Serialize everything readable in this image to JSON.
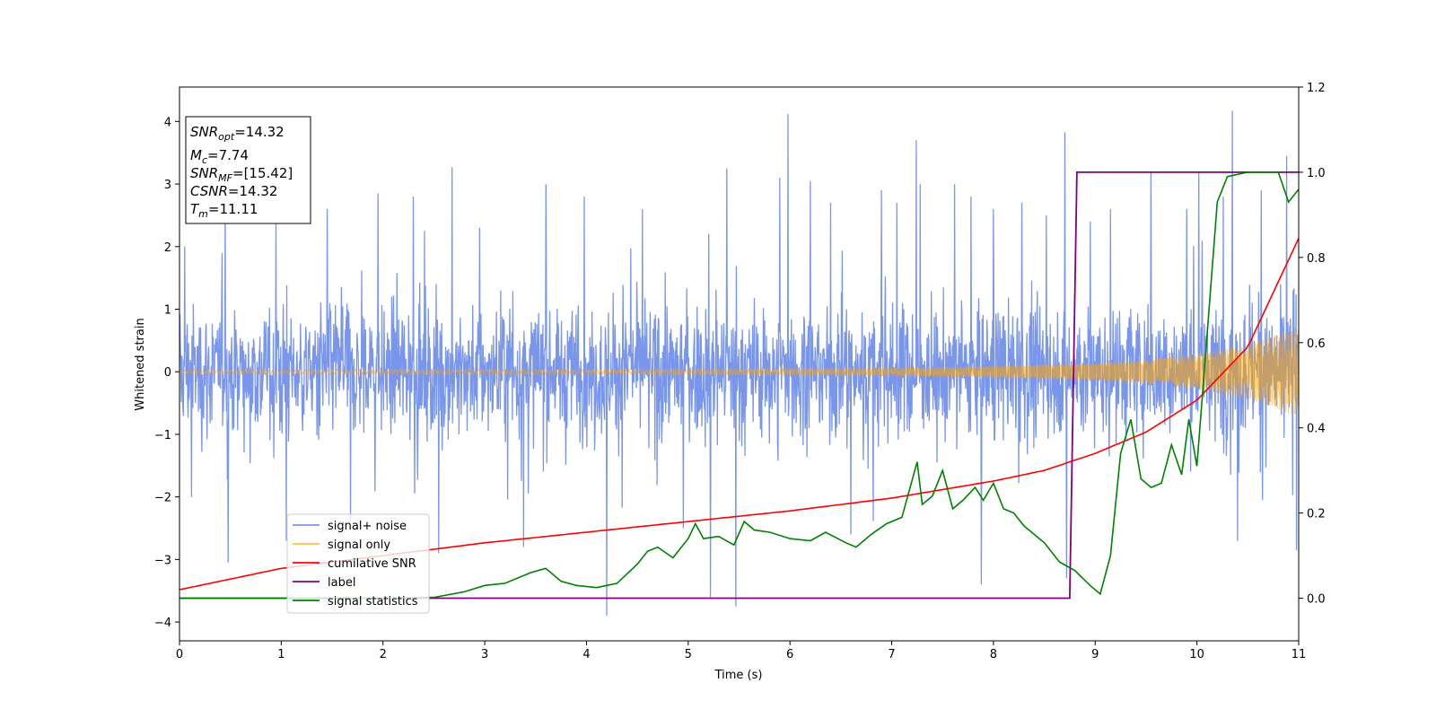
{
  "chart_data": {
    "type": "line",
    "xlabel": "Time (s)",
    "ylabel": "Whitened strain",
    "xlim": [
      0,
      11
    ],
    "ylim": [
      -4.3,
      4.55
    ],
    "y2lim": [
      -0.1,
      1.2
    ],
    "xticks": [
      0,
      1,
      2,
      3,
      4,
      5,
      6,
      7,
      8,
      9,
      10,
      11
    ],
    "yticks": [
      -4,
      -3,
      -2,
      -1,
      0,
      1,
      2,
      3,
      4
    ],
    "y2ticks": [
      "0.0",
      "0.2",
      "0.4",
      "0.6",
      "0.8",
      "1.0",
      "1.2"
    ],
    "y2tick_values": [
      0.0,
      0.2,
      0.4,
      0.6,
      0.8,
      1.0,
      1.2
    ],
    "grid": false,
    "legend_position": "lower-left",
    "info_box": {
      "snr_opt": "14.32",
      "mc": "7.74",
      "snr_mf": "[15.42]",
      "csnr": "14.32",
      "tm": "11.11"
    },
    "series": [
      {
        "name": "signal+ noise",
        "axis": "left",
        "color": "#4169e1",
        "description_values": "noise band roughly +/-1.2 with spikes up to about +/-4.2",
        "noise_envelope": 1.2,
        "spikes": [
          [
            0.05,
            2.0
          ],
          [
            0.12,
            -2.0
          ],
          [
            0.45,
            2.8
          ],
          [
            0.48,
            -3.05
          ],
          [
            0.95,
            2.4
          ],
          [
            1.05,
            -2.7
          ],
          [
            1.45,
            2.6
          ],
          [
            1.68,
            -2.4
          ],
          [
            1.95,
            2.85
          ],
          [
            2.3,
            2.8
          ],
          [
            2.55,
            -2.9
          ],
          [
            2.68,
            3.27
          ],
          [
            2.95,
            2.3
          ],
          [
            3.38,
            -2.8
          ],
          [
            3.6,
            3.0
          ],
          [
            3.98,
            2.8
          ],
          [
            4.2,
            -3.9
          ],
          [
            4.55,
            2.6
          ],
          [
            4.95,
            -2.5
          ],
          [
            5.2,
            2.2
          ],
          [
            5.22,
            -3.6
          ],
          [
            5.38,
            3.25
          ],
          [
            5.47,
            -3.75
          ],
          [
            5.9,
            3.1
          ],
          [
            5.98,
            4.12
          ],
          [
            6.2,
            3.05
          ],
          [
            6.4,
            2.7
          ],
          [
            6.6,
            -2.6
          ],
          [
            6.9,
            2.9
          ],
          [
            7.05,
            2.7
          ],
          [
            7.24,
            3.7
          ],
          [
            7.28,
            3.0
          ],
          [
            7.62,
            3.0
          ],
          [
            7.78,
            2.8
          ],
          [
            7.88,
            -3.4
          ],
          [
            8.0,
            2.6
          ],
          [
            8.28,
            2.7
          ],
          [
            8.52,
            2.5
          ],
          [
            8.7,
            3.83
          ],
          [
            8.72,
            -3.3
          ],
          [
            8.95,
            2.4
          ],
          [
            9.15,
            2.6
          ],
          [
            9.55,
            3.2
          ],
          [
            9.9,
            2.6
          ],
          [
            10.02,
            3.2
          ],
          [
            10.26,
            2.8
          ],
          [
            10.35,
            4.17
          ],
          [
            10.4,
            -2.7
          ],
          [
            10.63,
            2.9
          ],
          [
            10.88,
            3.45
          ],
          [
            10.98,
            -2.85
          ]
        ]
      },
      {
        "name": "signal only",
        "axis": "left",
        "color": "#ffa500",
        "amplitude_t": [
          0,
          5,
          7,
          8,
          9,
          9.5,
          10,
          10.5,
          11
        ],
        "amplitude": [
          0.03,
          0.04,
          0.06,
          0.09,
          0.14,
          0.19,
          0.28,
          0.43,
          0.72
        ]
      },
      {
        "name": "cumilative SNR",
        "axis": "right",
        "color": "#ff0000",
        "x": [
          0,
          1,
          2,
          3,
          4,
          5,
          6,
          7,
          8,
          8.5,
          9,
          9.5,
          10,
          10.5,
          11
        ],
        "y": [
          0.02,
          0.07,
          0.1,
          0.13,
          0.155,
          0.18,
          0.205,
          0.235,
          0.275,
          0.3,
          0.34,
          0.39,
          0.465,
          0.59,
          0.845
        ]
      },
      {
        "name": "label",
        "axis": "right",
        "color": "#800080",
        "x": [
          0,
          8.75,
          8.82,
          11
        ],
        "y": [
          0.0,
          0.0,
          1.0,
          1.0
        ]
      },
      {
        "name": "signal statistics",
        "axis": "right",
        "color": "#008000",
        "x": [
          0,
          1,
          2,
          2.5,
          2.8,
          3.0,
          3.2,
          3.45,
          3.6,
          3.75,
          3.9,
          4.1,
          4.3,
          4.5,
          4.6,
          4.7,
          4.85,
          5.0,
          5.07,
          5.15,
          5.3,
          5.45,
          5.55,
          5.65,
          5.8,
          6.0,
          6.2,
          6.35,
          6.55,
          6.65,
          6.8,
          6.95,
          7.1,
          7.25,
          7.3,
          7.4,
          7.5,
          7.6,
          7.7,
          7.82,
          7.9,
          8.0,
          8.1,
          8.2,
          8.3,
          8.5,
          8.65,
          8.8,
          8.95,
          9.05,
          9.15,
          9.25,
          9.35,
          9.45,
          9.55,
          9.65,
          9.75,
          9.85,
          9.92,
          10.0,
          10.1,
          10.2,
          10.3,
          10.5,
          10.8,
          10.9,
          11
        ],
        "y": [
          0.0,
          0.0,
          0.0,
          0.002,
          0.015,
          0.03,
          0.035,
          0.06,
          0.07,
          0.04,
          0.03,
          0.025,
          0.035,
          0.08,
          0.11,
          0.12,
          0.095,
          0.14,
          0.175,
          0.14,
          0.145,
          0.125,
          0.18,
          0.16,
          0.155,
          0.14,
          0.135,
          0.155,
          0.13,
          0.12,
          0.15,
          0.175,
          0.19,
          0.32,
          0.22,
          0.24,
          0.3,
          0.21,
          0.23,
          0.26,
          0.23,
          0.27,
          0.21,
          0.2,
          0.17,
          0.13,
          0.085,
          0.065,
          0.03,
          0.01,
          0.1,
          0.34,
          0.42,
          0.28,
          0.26,
          0.27,
          0.36,
          0.29,
          0.42,
          0.31,
          0.62,
          0.93,
          0.99,
          1.0,
          1.0,
          0.93,
          0.96
        ]
      }
    ]
  }
}
